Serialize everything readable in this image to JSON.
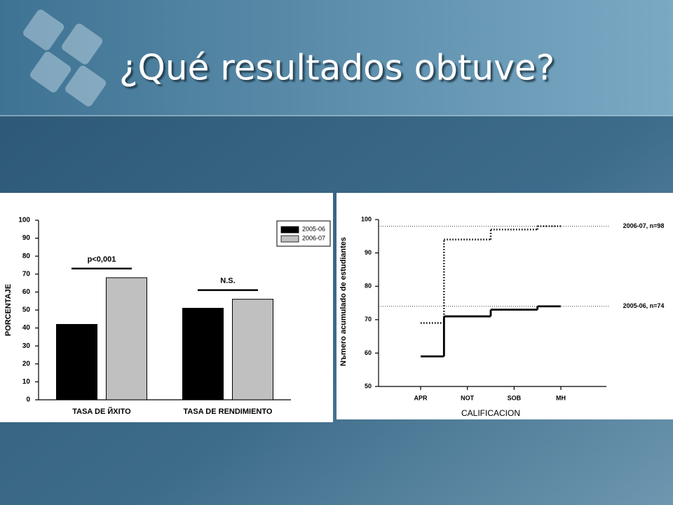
{
  "slide_title": "¿Qué resultados obtuve?",
  "chart_data": [
    {
      "type": "bar",
      "ylabel": "PORCENTAJE",
      "categories": [
        "TASA DE ЙXITO",
        "TASA DE RENDIMIENTO"
      ],
      "series": [
        {
          "name": "2005-06",
          "color": "#000000",
          "values": [
            42,
            51
          ]
        },
        {
          "name": "2006-07",
          "color": "#c0c0c0",
          "values": [
            68,
            56
          ]
        }
      ],
      "ylim": [
        0,
        100
      ],
      "yticks": [
        0,
        10,
        20,
        30,
        40,
        50,
        60,
        70,
        80,
        90,
        100
      ],
      "annotations": [
        "p<0,001",
        "N.S."
      ],
      "legend": "upper right"
    },
    {
      "type": "step",
      "xlabel": "CALIFICACION",
      "ylabel": "Nъmero acumulado de estudiantes",
      "categories": [
        "APR",
        "NOT",
        "SOB",
        "MH"
      ],
      "series": [
        {
          "name": "2006-07, n=98",
          "color": "#000000",
          "style": "dotted",
          "values": [
            69,
            94,
            97,
            98
          ]
        },
        {
          "name": "2005-06, n=74",
          "color": "#000000",
          "style": "solid",
          "values": [
            59,
            71,
            73,
            74
          ]
        }
      ],
      "ylim": [
        50,
        100
      ],
      "yticks": [
        50,
        60,
        70,
        80,
        90,
        100
      ]
    }
  ]
}
